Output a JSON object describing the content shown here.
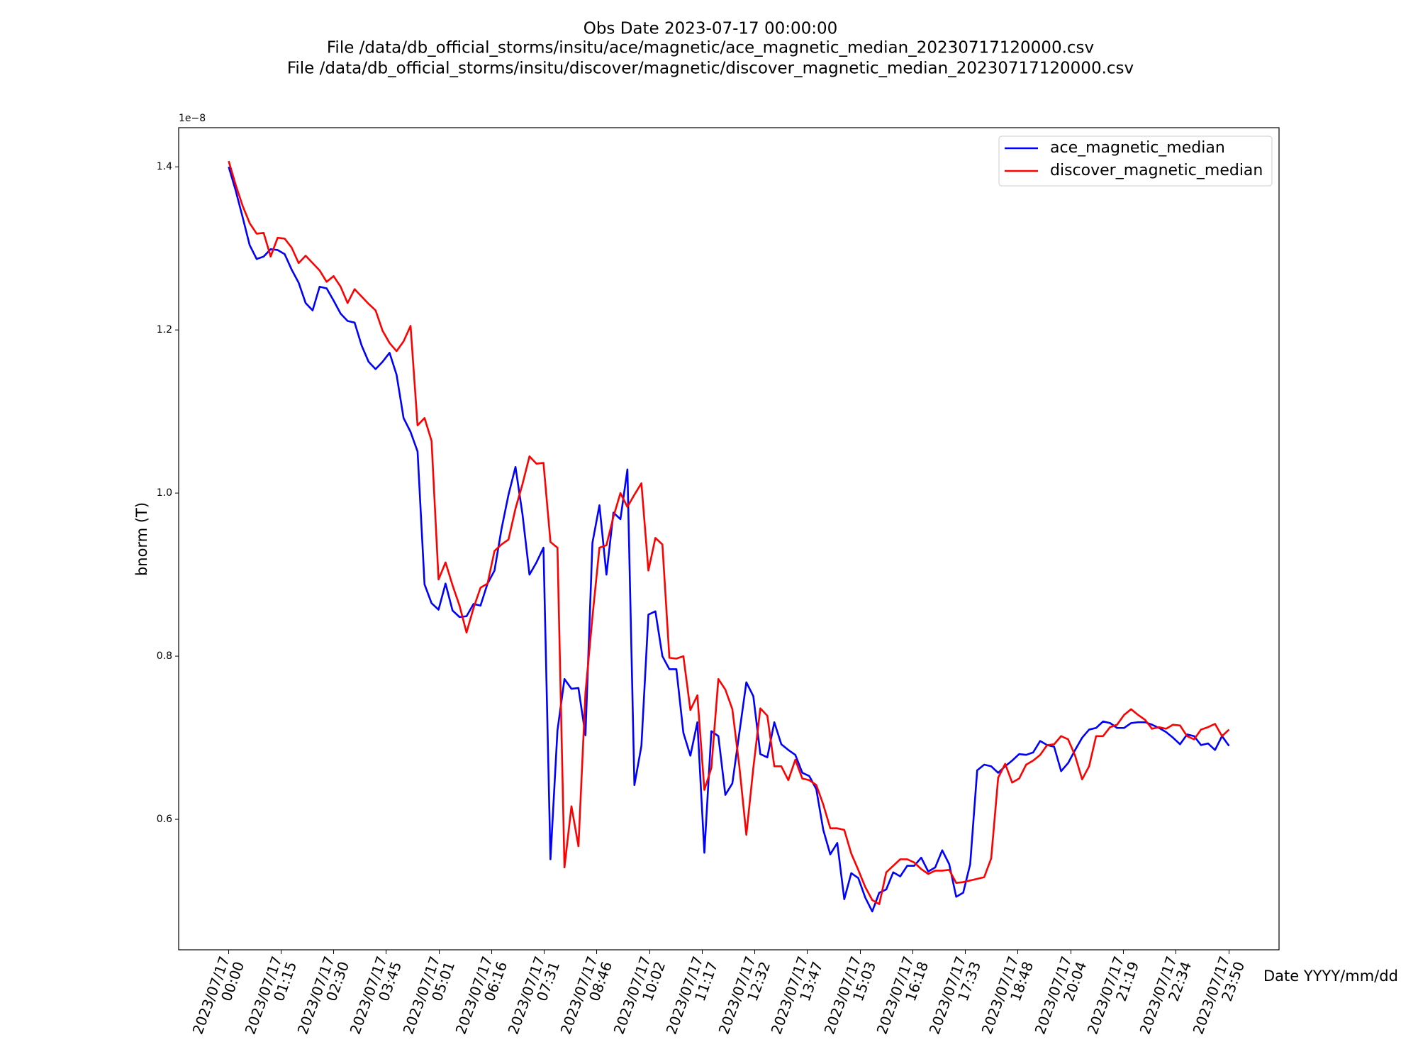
{
  "chart_data": {
    "type": "line",
    "title": [
      "Obs Date 2023-07-17 00:00:00",
      "File /data/db_official_storms/insitu/ace/magnetic/ace_magnetic_median_20230717120000.csv",
      "File /data/db_official_storms/insitu/discover/magnetic/discover_magnetic_median_20230717120000.csv"
    ],
    "xlabel": "Date YYYY/mm/dd",
    "ylabel": "bnorm (T)",
    "y_offset_text": "1e−8",
    "legend": "upper right",
    "ylim": [
      0.44,
      1.448
    ],
    "yticks": [
      0.6,
      0.8,
      {
        "value": 1,
        "label": "1.0"
      },
      1.2,
      1.4
    ],
    "xticks": [
      "2023/07/17 00:00",
      "2023/07/17 01:15",
      "2023/07/17 02:30",
      "2023/07/17 03:45",
      "2023/07/17 05:01",
      "2023/07/17 06:16",
      "2023/07/17 07:31",
      "2023/07/17 08:46",
      "2023/07/17 10:02",
      "2023/07/17 11:17",
      "2023/07/17 12:32",
      "2023/07/17 13:47",
      "2023/07/17 15:03",
      "2023/07/17 16:18",
      "2023/07/17 17:33",
      "2023/07/17 18:48",
      "2023/07/17 20:04",
      "2023/07/17 21:19",
      "2023/07/17 22:34",
      "2023/07/17 23:50"
    ],
    "x": [
      "2023/07/17 00:00",
      "2023/07/17 00:10",
      "2023/07/17 00:20",
      "2023/07/17 00:30",
      "2023/07/17 00:40",
      "2023/07/17 00:50",
      "2023/07/17 01:00",
      "2023/07/17 01:10",
      "2023/07/17 01:20",
      "2023/07/17 01:30",
      "2023/07/17 01:40",
      "2023/07/17 01:50",
      "2023/07/17 02:00",
      "2023/07/17 02:10",
      "2023/07/17 02:20",
      "2023/07/17 02:30",
      "2023/07/17 02:40",
      "2023/07/17 02:50",
      "2023/07/17 03:00",
      "2023/07/17 03:10",
      "2023/07/17 03:20",
      "2023/07/17 03:30",
      "2023/07/17 03:40",
      "2023/07/17 03:50",
      "2023/07/17 04:00",
      "2023/07/17 04:10",
      "2023/07/17 04:20",
      "2023/07/17 04:30",
      "2023/07/17 04:40",
      "2023/07/17 04:50",
      "2023/07/17 05:00",
      "2023/07/17 05:10",
      "2023/07/17 05:20",
      "2023/07/17 05:30",
      "2023/07/17 05:40",
      "2023/07/17 05:50",
      "2023/07/17 06:00",
      "2023/07/17 06:10",
      "2023/07/17 06:20",
      "2023/07/17 06:30",
      "2023/07/17 06:40",
      "2023/07/17 06:50",
      "2023/07/17 07:00",
      "2023/07/17 07:10",
      "2023/07/17 07:20",
      "2023/07/17 07:30",
      "2023/07/17 07:40",
      "2023/07/17 07:50",
      "2023/07/17 08:00",
      "2023/07/17 08:10",
      "2023/07/17 08:20",
      "2023/07/17 08:30",
      "2023/07/17 08:40",
      "2023/07/17 08:50",
      "2023/07/17 09:00",
      "2023/07/17 09:10",
      "2023/07/17 09:20",
      "2023/07/17 09:30",
      "2023/07/17 09:40",
      "2023/07/17 09:50",
      "2023/07/17 10:00",
      "2023/07/17 10:10",
      "2023/07/17 10:20",
      "2023/07/17 10:30",
      "2023/07/17 10:40",
      "2023/07/17 10:50",
      "2023/07/17 11:00",
      "2023/07/17 11:10",
      "2023/07/17 11:20",
      "2023/07/17 11:30",
      "2023/07/17 11:40",
      "2023/07/17 11:50",
      "2023/07/17 12:00",
      "2023/07/17 12:10",
      "2023/07/17 12:20",
      "2023/07/17 12:30",
      "2023/07/17 12:40",
      "2023/07/17 12:50",
      "2023/07/17 13:00",
      "2023/07/17 13:10",
      "2023/07/17 13:20",
      "2023/07/17 13:30",
      "2023/07/17 13:40",
      "2023/07/17 13:50",
      "2023/07/17 14:00",
      "2023/07/17 14:10",
      "2023/07/17 14:20",
      "2023/07/17 14:30",
      "2023/07/17 14:40",
      "2023/07/17 14:50",
      "2023/07/17 15:00",
      "2023/07/17 15:10",
      "2023/07/17 15:20",
      "2023/07/17 15:30",
      "2023/07/17 15:40",
      "2023/07/17 15:50",
      "2023/07/17 16:00",
      "2023/07/17 16:10",
      "2023/07/17 16:20",
      "2023/07/17 16:30",
      "2023/07/17 16:40",
      "2023/07/17 16:50",
      "2023/07/17 17:00",
      "2023/07/17 17:10",
      "2023/07/17 17:20",
      "2023/07/17 17:30",
      "2023/07/17 17:40",
      "2023/07/17 17:50",
      "2023/07/17 18:00",
      "2023/07/17 18:10",
      "2023/07/17 18:20",
      "2023/07/17 18:30",
      "2023/07/17 18:40",
      "2023/07/17 18:50",
      "2023/07/17 19:00",
      "2023/07/17 19:10",
      "2023/07/17 19:20",
      "2023/07/17 19:30",
      "2023/07/17 19:40",
      "2023/07/17 19:50",
      "2023/07/17 20:00",
      "2023/07/17 20:10",
      "2023/07/17 20:20",
      "2023/07/17 20:30",
      "2023/07/17 20:40",
      "2023/07/17 20:50",
      "2023/07/17 21:00",
      "2023/07/17 21:10",
      "2023/07/17 21:20",
      "2023/07/17 21:30",
      "2023/07/17 21:40",
      "2023/07/17 21:50",
      "2023/07/17 22:00",
      "2023/07/17 22:10",
      "2023/07/17 22:20",
      "2023/07/17 22:30",
      "2023/07/17 22:40",
      "2023/07/17 22:50",
      "2023/07/17 23:00",
      "2023/07/17 23:10",
      "2023/07/17 23:20",
      "2023/07/17 23:30",
      "2023/07/17 23:40",
      "2023/07/17 23:50"
    ],
    "series": [
      {
        "name": "ace_magnetic_median",
        "color": "#0000ff",
        "values": [
          1.4,
          1.371,
          1.338,
          1.304,
          1.287,
          1.29,
          1.299,
          1.298,
          1.293,
          1.274,
          1.258,
          1.233,
          1.224,
          1.253,
          1.251,
          1.236,
          1.22,
          1.211,
          1.209,
          1.181,
          1.161,
          1.152,
          1.161,
          1.172,
          1.145,
          1.092,
          1.075,
          1.051,
          0.888,
          0.865,
          0.857,
          0.889,
          0.856,
          0.848,
          0.849,
          0.864,
          0.862,
          0.889,
          0.905,
          0.956,
          0.998,
          1.032,
          0.974,
          0.9,
          0.915,
          0.933,
          0.551,
          0.709,
          0.772,
          0.76,
          0.761,
          0.703,
          0.939,
          0.985,
          0.9,
          0.976,
          0.968,
          1.029,
          0.642,
          0.69,
          0.851,
          0.855,
          0.8,
          0.784,
          0.784,
          0.706,
          0.678,
          0.719,
          0.559,
          0.708,
          0.702,
          0.63,
          0.644,
          0.706,
          0.768,
          0.751,
          0.68,
          0.676,
          0.719,
          0.692,
          0.685,
          0.679,
          0.657,
          0.653,
          0.637,
          0.587,
          0.557,
          0.571,
          0.502,
          0.534,
          0.528,
          0.504,
          0.487,
          0.51,
          0.514,
          0.535,
          0.53,
          0.543,
          0.543,
          0.553,
          0.536,
          0.541,
          0.562,
          0.545,
          0.505,
          0.51,
          0.545,
          0.66,
          0.667,
          0.665,
          0.657,
          0.665,
          0.672,
          0.68,
          0.679,
          0.682,
          0.696,
          0.691,
          0.689,
          0.659,
          0.669,
          0.685,
          0.7,
          0.71,
          0.712,
          0.72,
          0.718,
          0.712,
          0.712,
          0.718,
          0.719,
          0.719,
          0.716,
          0.712,
          0.707,
          0.7,
          0.692,
          0.704,
          0.702,
          0.691,
          0.693,
          0.685,
          0.702,
          0.69
        ]
      },
      {
        "name": "discover_magnetic_median",
        "color": "#ff0000",
        "values": [
          1.407,
          1.378,
          1.352,
          1.331,
          1.318,
          1.319,
          1.29,
          1.313,
          1.312,
          1.301,
          1.282,
          1.291,
          1.282,
          1.273,
          1.259,
          1.266,
          1.253,
          1.233,
          1.25,
          1.241,
          1.232,
          1.224,
          1.199,
          1.184,
          1.174,
          1.186,
          1.205,
          1.083,
          1.092,
          1.064,
          0.894,
          0.915,
          0.887,
          0.862,
          0.829,
          0.859,
          0.884,
          0.889,
          0.929,
          0.937,
          0.943,
          0.981,
          1.011,
          1.045,
          1.036,
          1.037,
          0.94,
          0.933,
          0.541,
          0.616,
          0.567,
          0.755,
          0.848,
          0.933,
          0.936,
          0.971,
          1.0,
          0.983,
          0.998,
          1.012,
          0.905,
          0.945,
          0.937,
          0.798,
          0.797,
          0.8,
          0.734,
          0.752,
          0.636,
          0.663,
          0.772,
          0.759,
          0.735,
          0.665,
          0.581,
          0.663,
          0.736,
          0.727,
          0.665,
          0.665,
          0.648,
          0.673,
          0.65,
          0.648,
          0.642,
          0.618,
          0.589,
          0.589,
          0.587,
          0.558,
          0.538,
          0.517,
          0.501,
          0.496,
          0.535,
          0.543,
          0.551,
          0.551,
          0.547,
          0.539,
          0.533,
          0.537,
          0.537,
          0.538,
          0.522,
          0.523,
          0.525,
          0.527,
          0.529,
          0.552,
          0.651,
          0.668,
          0.645,
          0.65,
          0.667,
          0.672,
          0.679,
          0.691,
          0.692,
          0.702,
          0.698,
          0.678,
          0.649,
          0.665,
          0.702,
          0.702,
          0.713,
          0.716,
          0.728,
          0.735,
          0.728,
          0.722,
          0.711,
          0.713,
          0.711,
          0.716,
          0.715,
          0.702,
          0.698,
          0.71,
          0.713,
          0.717,
          0.702,
          0.71
        ]
      }
    ]
  }
}
